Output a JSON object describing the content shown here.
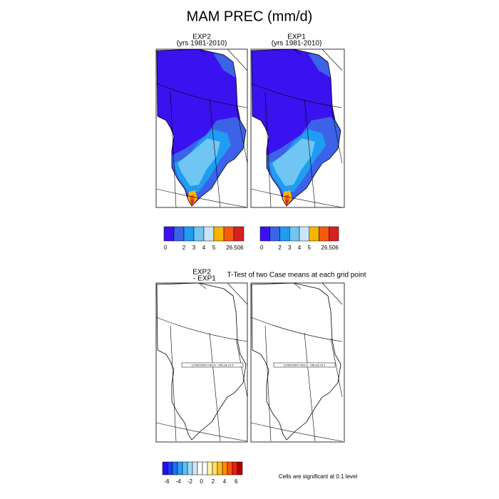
{
  "title": "MAM PREC (mm/d)",
  "panels": [
    {
      "title": "EXP2",
      "subtitle": "(yrs 1981-2010)"
    },
    {
      "title": "EXP1",
      "subtitle": "(yrs 1981-2010)"
    }
  ],
  "colorbar": {
    "colors": [
      "#3a12f0",
      "#3c62e8",
      "#1e9df2",
      "#70c6f2",
      "#c8e6f6",
      "#f7b500",
      "#f55a10",
      "#d8201e"
    ],
    "labels": [
      "0",
      "2",
      "3",
      "4",
      "5",
      "26.506"
    ]
  },
  "difference": {
    "title_lines": [
      "EXP2",
      "- EXP1"
    ],
    "test_title": "T-Test of two Case means at each grid point",
    "panel_note": "CONSTANT FIELD - VALUE IS 0",
    "colorbar": {
      "colors": [
        "#2a0ff0",
        "#1a3cf0",
        "#1f6ef0",
        "#2a9ef5",
        "#5fc0f5",
        "#9ed8f5",
        "#cde8fa",
        "#ffffff",
        "#ffffff",
        "#fff5b0",
        "#ffe060",
        "#ffbe20",
        "#ff8c00",
        "#ff5010",
        "#e82010",
        "#b00000"
      ],
      "labels": [
        "-6",
        "-4",
        "-2",
        "0",
        "2",
        "4",
        "6"
      ]
    },
    "footnote": "Cells are significant at 0.1 level"
  }
}
